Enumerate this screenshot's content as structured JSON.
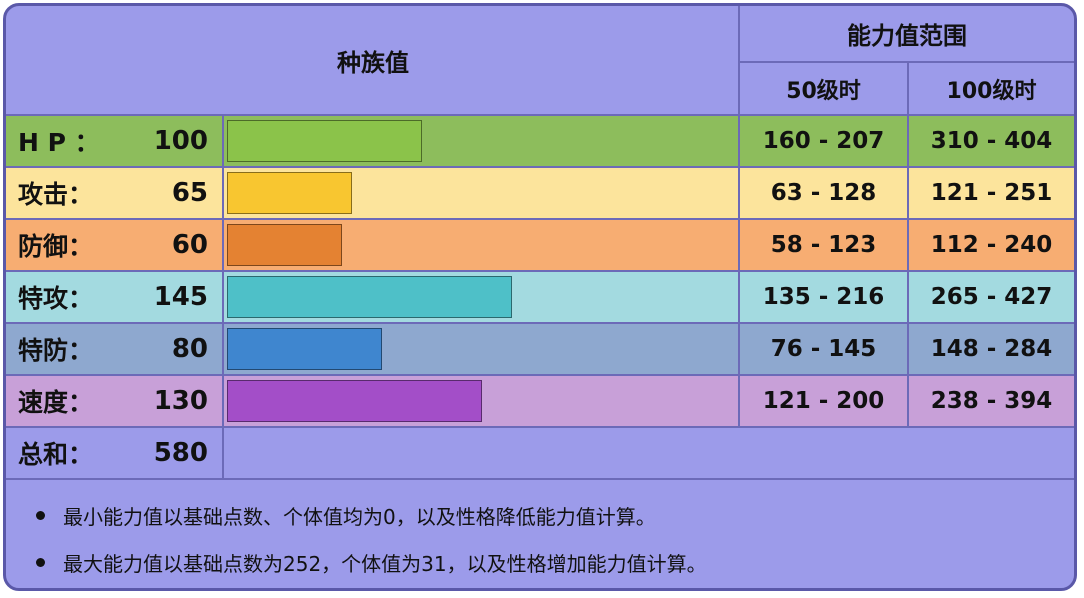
{
  "header": {
    "base_stats": "种族值",
    "stat_range": "能力值范围",
    "lv50": "50级时",
    "lv100": "100级时"
  },
  "stats": [
    {
      "label": "H P ：",
      "value": "100",
      "lv50": "160 - 207",
      "lv100": "310 - 404",
      "bar_fraction": 0.39,
      "bar_color": "#8bc34a",
      "row_color": "#8dbd5c"
    },
    {
      "label": "攻击：",
      "value": "65",
      "lv50": "63 - 128",
      "lv100": "121 - 251",
      "bar_fraction": 0.25,
      "bar_color": "#f8c630",
      "row_color": "#fce49c"
    },
    {
      "label": "防御：",
      "value": "60",
      "lv50": "58 - 123",
      "lv100": "112 - 240",
      "bar_fraction": 0.23,
      "bar_color": "#e48232",
      "row_color": "#f7ad72"
    },
    {
      "label": "特攻：",
      "value": "145",
      "lv50": "135 - 216",
      "lv100": "265 - 427",
      "bar_fraction": 0.57,
      "bar_color": "#4ec0c8",
      "row_color": "#a3dae0"
    },
    {
      "label": "特防：",
      "value": "80",
      "lv50": "76 - 145",
      "lv100": "148 - 284",
      "bar_fraction": 0.31,
      "bar_color": "#3f86cf",
      "row_color": "#8ea8cf"
    },
    {
      "label": "速度：",
      "value": "130",
      "lv50": "121 - 200",
      "lv100": "238 - 394",
      "bar_fraction": 0.51,
      "bar_color": "#a34ec8",
      "row_color": "#c8a0d8"
    }
  ],
  "total": {
    "label": "总和：",
    "value": "580"
  },
  "notes": [
    "最小能力值以基础点数、个体值均为0，以及性格降低能力值计算。",
    "最大能力值以基础点数为252，个体值为31，以及性格增加能力值计算。"
  ]
}
